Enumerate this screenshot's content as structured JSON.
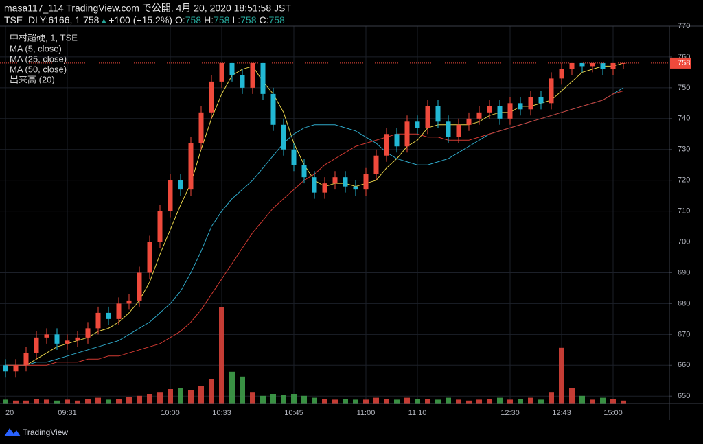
{
  "header": {
    "publisher": "masa117_114 TradingView.com で公開, 4月 20, 2020 18:51:58 JST",
    "symbol": "TSE_DLY:6166, 1",
    "last": 758,
    "arrow": "▲",
    "change": "+100 (+15.2%)",
    "ohlc": [
      {
        "label": "O:",
        "value": 758
      },
      {
        "label": "H:",
        "value": 758
      },
      {
        "label": "L:",
        "value": 758
      },
      {
        "label": "C:",
        "value": 758
      }
    ]
  },
  "footer": {
    "brand": "TradingView"
  },
  "chart_data": {
    "type": "candlestick",
    "symbol_name": "中村超硬, 1, TSE",
    "categories": [
      "20",
      null,
      null,
      null,
      null,
      null,
      "09:31",
      null,
      null,
      null,
      null,
      null,
      null,
      null,
      null,
      null,
      "10:00",
      null,
      null,
      null,
      null,
      "10:33",
      null,
      null,
      null,
      null,
      null,
      null,
      "10:45",
      null,
      null,
      null,
      null,
      null,
      null,
      "11:00",
      null,
      null,
      null,
      null,
      "11:10",
      null,
      null,
      null,
      null,
      null,
      null,
      null,
      null,
      "12:30",
      null,
      null,
      null,
      null,
      "12:43",
      null,
      null,
      null,
      null,
      "15:00",
      null
    ],
    "open": [
      660,
      658,
      660,
      664,
      669,
      670,
      667,
      668,
      669,
      672,
      677,
      675,
      680,
      681,
      690,
      700,
      710,
      720,
      717,
      732,
      742,
      752,
      758,
      754,
      750,
      758,
      748,
      738,
      730,
      725,
      721,
      716,
      719,
      721,
      718,
      717,
      722,
      728,
      735,
      731,
      739,
      737,
      744,
      739,
      734,
      738,
      740,
      742,
      744,
      740,
      745,
      743,
      747,
      745,
      753,
      756,
      758,
      757,
      758,
      756,
      758
    ],
    "high": [
      662,
      662,
      666,
      671,
      672,
      672,
      670,
      671,
      674,
      679,
      679,
      682,
      683,
      692,
      702,
      712,
      722,
      722,
      734,
      744,
      754,
      758,
      758,
      756,
      758,
      758,
      750,
      740,
      732,
      727,
      723,
      721,
      723,
      723,
      720,
      724,
      730,
      737,
      737,
      741,
      741,
      746,
      746,
      741,
      740,
      742,
      744,
      746,
      746,
      747,
      747,
      749,
      749,
      755,
      758,
      758,
      758,
      758,
      758,
      758,
      758
    ],
    "low": [
      656,
      656,
      658,
      662,
      667,
      665,
      665,
      666,
      667,
      670,
      673,
      673,
      678,
      679,
      688,
      698,
      708,
      715,
      715,
      730,
      740,
      750,
      752,
      748,
      748,
      746,
      736,
      728,
      723,
      719,
      714,
      714,
      717,
      716,
      715,
      715,
      720,
      726,
      729,
      729,
      735,
      735,
      737,
      732,
      732,
      736,
      738,
      740,
      738,
      738,
      741,
      741,
      743,
      743,
      751,
      754,
      755,
      755,
      754,
      754,
      756
    ],
    "close": [
      658,
      660,
      664,
      669,
      670,
      667,
      668,
      669,
      672,
      677,
      675,
      680,
      681,
      690,
      700,
      710,
      720,
      717,
      732,
      742,
      752,
      758,
      754,
      750,
      758,
      748,
      738,
      730,
      725,
      721,
      716,
      719,
      721,
      718,
      717,
      722,
      728,
      735,
      731,
      739,
      737,
      744,
      739,
      734,
      738,
      740,
      742,
      744,
      740,
      745,
      743,
      747,
      745,
      753,
      756,
      758,
      757,
      758,
      756,
      758,
      758
    ],
    "volume_name": "出来高 (20)",
    "volume": [
      4,
      3,
      3,
      5,
      4,
      3,
      4,
      3,
      5,
      6,
      4,
      5,
      7,
      8,
      10,
      12,
      15,
      16,
      14,
      18,
      25,
      100,
      33,
      28,
      12,
      8,
      10,
      9,
      10,
      8,
      6,
      5,
      4,
      5,
      4,
      4,
      6,
      5,
      4,
      6,
      5,
      5,
      4,
      6,
      4,
      3,
      4,
      5,
      6,
      4,
      5,
      6,
      4,
      12,
      58,
      16,
      8,
      4,
      6,
      5,
      3
    ],
    "volume_ylim": [
      0,
      100
    ],
    "ma_series": [
      {
        "name": "MA (5, close)",
        "color": "#e8d34a",
        "values": [
          660,
          660,
          660,
          662,
          664,
          666,
          667,
          668,
          669,
          671,
          672,
          674,
          677,
          681,
          687,
          696,
          704,
          712,
          719,
          730,
          740,
          748,
          754,
          756,
          757,
          752,
          748,
          742,
          732,
          725,
          720,
          718,
          719,
          719,
          718,
          719,
          720,
          724,
          727,
          731,
          733,
          737,
          738,
          738,
          738,
          738,
          739,
          741,
          742,
          742,
          744,
          744,
          745,
          746,
          749,
          752,
          755,
          756,
          757,
          757,
          758
        ]
      },
      {
        "name": "MA (25, close)",
        "color": "#2fa9c9",
        "values": [
          660,
          660,
          660,
          661,
          661,
          662,
          663,
          664,
          665,
          666,
          667,
          668,
          670,
          672,
          674,
          677,
          680,
          684,
          690,
          697,
          705,
          710,
          714,
          717,
          720,
          724,
          728,
          732,
          735,
          737,
          738,
          738,
          738,
          737,
          736,
          734,
          732,
          729,
          727,
          726,
          725,
          725,
          726,
          727,
          729,
          731,
          733,
          735,
          736,
          737,
          738,
          739,
          740,
          741,
          742,
          743,
          744,
          745,
          746,
          748,
          750
        ]
      },
      {
        "name": "MA (50, close)",
        "color": "#d23a32",
        "values": [
          660,
          660,
          660,
          660,
          660,
          661,
          661,
          661,
          662,
          662,
          663,
          663,
          664,
          665,
          666,
          667,
          669,
          671,
          674,
          678,
          683,
          688,
          693,
          698,
          703,
          707,
          711,
          714,
          717,
          720,
          722,
          725,
          727,
          729,
          731,
          732,
          733,
          734,
          735,
          735,
          735,
          734,
          734,
          733,
          733,
          733,
          734,
          735,
          736,
          737,
          738,
          739,
          740,
          741,
          742,
          743,
          744,
          745,
          746,
          748,
          749
        ]
      }
    ],
    "up_color": "#ef4a3c",
    "down_color": "#22b8d4",
    "volume_up_color": "#d9423a",
    "volume_down_color": "#3fa04a",
    "last_price": 758,
    "ylim": [
      647.6,
      770
    ],
    "yticks": [
      650,
      660,
      670,
      680,
      690,
      700,
      710,
      720,
      730,
      740,
      750,
      760,
      770
    ],
    "grid": true
  }
}
